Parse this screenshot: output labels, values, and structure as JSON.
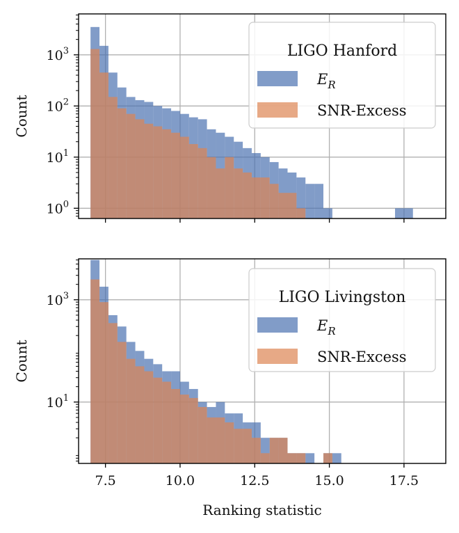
{
  "chart_data": {
    "type": "histogram",
    "colors": {
      "er": "#4c72b0",
      "snr": "#dd8452",
      "grid": "#b0b0b0",
      "axis": "#000000"
    },
    "xlim": [
      6.6,
      18.9
    ],
    "x_ticks": [
      7.5,
      10,
      12.5,
      15,
      17.5
    ],
    "x_tick_labels": [
      "7.5",
      "10.0",
      "12.5",
      "15.0",
      "17.5"
    ],
    "xlabel": "Ranking statistic",
    "bin_start": 7.0,
    "bin_width": 0.3,
    "panels": [
      {
        "id": "hanford",
        "legend_title": "LIGO Hanford",
        "legend_loc": "upper right",
        "ylabel": "Count",
        "yscale": "log",
        "ylim_log10": [
          -0.2,
          3.8
        ],
        "y_ticks_log10": [
          0,
          1,
          2,
          3
        ],
        "y_tick_labels": [
          {
            "base": "10",
            "exp": "0"
          },
          {
            "base": "10",
            "exp": "1"
          },
          {
            "base": "10",
            "exp": "2"
          },
          {
            "base": "10",
            "exp": "3"
          }
        ],
        "show_x_tick_labels": false,
        "series": [
          {
            "name": "E_R",
            "label_main": "E",
            "label_sub": "R",
            "color_key": "er",
            "values": [
              3500,
              1500,
              450,
              230,
              150,
              130,
              120,
              100,
              90,
              80,
              70,
              60,
              55,
              35,
              30,
              25,
              20,
              15,
              12,
              10,
              8,
              6,
              5,
              4,
              3,
              3,
              1,
              0,
              0,
              0,
              0,
              0,
              0,
              0,
              1,
              1,
              0
            ]
          },
          {
            "name": "SNR-Excess",
            "label_main": "SNR-Excess",
            "label_sub": "",
            "color_key": "snr",
            "values": [
              1300,
              450,
              150,
              90,
              70,
              55,
              45,
              40,
              35,
              30,
              25,
              18,
              15,
              10,
              6,
              10,
              6,
              5,
              4,
              4,
              3,
              2,
              2,
              1,
              0,
              0,
              0,
              0,
              0,
              0,
              0,
              0,
              0,
              0,
              0,
              0,
              0
            ]
          }
        ]
      },
      {
        "id": "livingston",
        "legend_title": "LIGO Livingston",
        "legend_loc": "upper right",
        "ylabel": "Count",
        "yscale": "log",
        "ylim_log10": [
          -0.2,
          3.8
        ],
        "y_ticks_log10": [
          1,
          3
        ],
        "y_tick_labels": [
          {
            "base": "10",
            "exp": "1"
          },
          {
            "base": "10",
            "exp": "3"
          }
        ],
        "show_x_tick_labels": true,
        "series": [
          {
            "name": "E_R",
            "label_main": "E",
            "label_sub": "R",
            "color_key": "er",
            "values": [
              6000,
              1800,
              500,
              300,
              150,
              100,
              70,
              55,
              40,
              40,
              25,
              18,
              10,
              8,
              10,
              6,
              6,
              4,
              4,
              2,
              2,
              2,
              1,
              1,
              1,
              0,
              1,
              1,
              0,
              0,
              0,
              0,
              0,
              0,
              0,
              0,
              0
            ]
          },
          {
            "name": "SNR-Excess",
            "label_main": "SNR-Excess",
            "label_sub": "",
            "color_key": "snr",
            "values": [
              2500,
              900,
              350,
              150,
              70,
              50,
              40,
              30,
              25,
              18,
              14,
              12,
              8,
              5,
              5,
              4,
              3,
              3,
              2,
              1,
              2,
              2,
              1,
              1,
              0,
              0,
              1,
              0,
              0,
              0,
              0,
              0,
              0,
              0,
              0,
              0,
              0
            ]
          }
        ]
      }
    ]
  }
}
